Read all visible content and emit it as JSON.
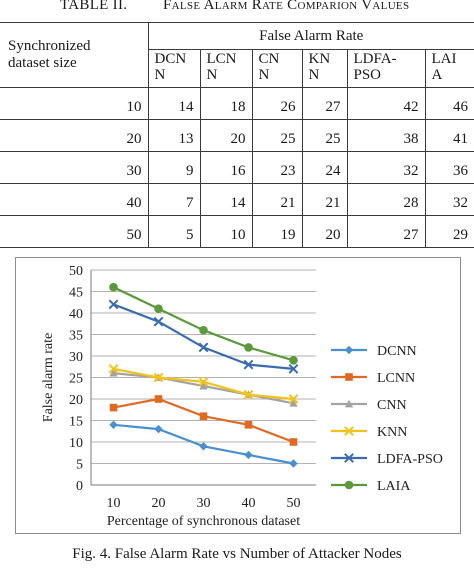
{
  "table": {
    "number": "TABLE II.",
    "caption": "False Alarm Rate Comparion Values",
    "row_header_line1": "Synchronized",
    "row_header_line2": "dataset size",
    "group_header": "False Alarm Rate",
    "columns": [
      {
        "line1": "DCN",
        "line2": "N"
      },
      {
        "line1": "LCN",
        "line2": "N"
      },
      {
        "line1": "CN",
        "line2": "N"
      },
      {
        "line1": "KN",
        "line2": "N"
      },
      {
        "line1": "LDFA-",
        "line2": "PSO"
      },
      {
        "line1": "LAI",
        "line2": "A"
      }
    ],
    "rows": [
      {
        "size": "10",
        "values": [
          "14",
          "18",
          "26",
          "27",
          "42",
          "46"
        ]
      },
      {
        "size": "20",
        "values": [
          "13",
          "20",
          "25",
          "25",
          "38",
          "41"
        ]
      },
      {
        "size": "30",
        "values": [
          "9",
          "16",
          "23",
          "24",
          "32",
          "36"
        ]
      },
      {
        "size": "40",
        "values": [
          "7",
          "14",
          "21",
          "21",
          "28",
          "32"
        ]
      },
      {
        "size": "50",
        "values": [
          "5",
          "10",
          "19",
          "20",
          "27",
          "29"
        ]
      }
    ]
  },
  "chart_data": {
    "type": "line",
    "title": "",
    "xlabel": "Percentage of synchronous dataset",
    "ylabel": "False alarm rate",
    "x": [
      10,
      20,
      30,
      40,
      50
    ],
    "ylim": [
      0,
      50
    ],
    "yticks": [
      0,
      5,
      10,
      15,
      20,
      25,
      30,
      35,
      40,
      45,
      50
    ],
    "grid": true,
    "legend": "right",
    "series": [
      {
        "name": "DCNN",
        "values": [
          14,
          13,
          9,
          7,
          5
        ],
        "color": "#4a8fd0",
        "marker": "diamond"
      },
      {
        "name": "LCNN",
        "values": [
          18,
          20,
          16,
          14,
          10
        ],
        "color": "#e06a23",
        "marker": "square"
      },
      {
        "name": "CNN",
        "values": [
          26,
          25,
          23,
          21,
          19
        ],
        "color": "#a3a3a3",
        "marker": "triangle"
      },
      {
        "name": "KNN",
        "values": [
          27,
          25,
          24,
          21,
          20
        ],
        "color": "#f2c21a",
        "marker": "x"
      },
      {
        "name": "LDFA-PSO",
        "values": [
          42,
          38,
          32,
          28,
          27
        ],
        "color": "#3a6bb0",
        "marker": "x"
      },
      {
        "name": "LAIA",
        "values": [
          46,
          41,
          36,
          32,
          29
        ],
        "color": "#5b9a3c",
        "marker": "circle"
      }
    ]
  },
  "figure_caption": "Fig. 4.   False Alarm Rate vs Number of Attacker Nodes"
}
